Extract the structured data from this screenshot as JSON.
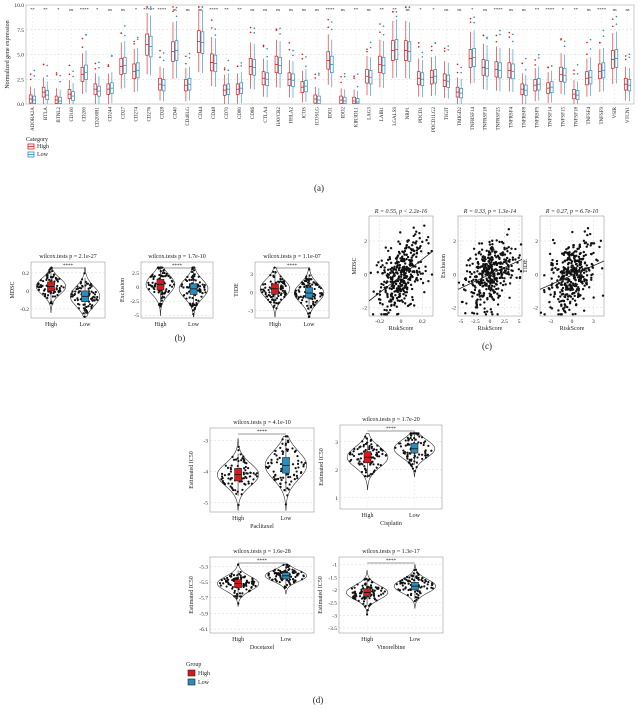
{
  "panels": {
    "a": "(a)",
    "b": "(b)",
    "c": "(c)",
    "d": "(d)"
  },
  "colors": {
    "high": "#d7191c",
    "low": "#2b8cbe",
    "high_fill": "#f6cfcf",
    "low_fill": "#cfe6f2"
  },
  "chart_data": [
    {
      "id": "a",
      "type": "box",
      "ylabel": "Normalized gene expression",
      "ylim": [
        0,
        10
      ],
      "yticks": [
        0.0,
        2.5,
        5.0,
        7.5,
        10.0
      ],
      "legend": {
        "title": "Category",
        "entries": [
          "High",
          "Low"
        ]
      },
      "categories": [
        "ADORA2A",
        "BTLA",
        "BTNL2",
        "CD160",
        "CD200",
        "CD200R1",
        "CD244",
        "CD27",
        "CD274",
        "CD276",
        "CD28",
        "CD40",
        "CD40LG",
        "CD44",
        "CD48",
        "CD70",
        "CD80",
        "CD86",
        "CTLA4",
        "HAVCR2",
        "HHLA2",
        "ICOS",
        "ICOSLG",
        "IDO1",
        "IDO2",
        "KIR3DL1",
        "LAG3",
        "LAIR1",
        "LGALS9",
        "NRP1",
        "PDCD1",
        "PDCD1LG2",
        "TIGIT",
        "TMIGD2",
        "TNFRSF14",
        "TNFRSF18",
        "TNFRSF25",
        "TNFRSF4",
        "TNFRSF8",
        "TNFRSF9",
        "TNFSF14",
        "TNFSF15",
        "TNFSF18",
        "TNFSF4",
        "TNFSF9",
        "VSIR",
        "VTCN1"
      ],
      "significance": [
        "**",
        "**",
        "*",
        "ns",
        "****",
        "*",
        "ns",
        "ns",
        "*",
        "*****",
        "****",
        "ns",
        "ns",
        "ns",
        "****",
        "**",
        "**",
        "ns",
        "ns",
        "ns",
        "ns",
        "ns",
        "ns",
        "****",
        "ns",
        "**",
        "ns",
        "**",
        "**",
        "ns",
        "*",
        "*",
        "ns",
        "ns",
        "*",
        "ns",
        "****",
        "ns",
        "ns",
        "**",
        "****",
        "*",
        "**",
        "ns",
        "****",
        "ns",
        "ns"
      ],
      "series": [
        {
          "name": "High",
          "median": [
            0.5,
            1.2,
            0.4,
            1.0,
            3.0,
            1.5,
            1.5,
            3.8,
            3.3,
            6.0,
            2.0,
            5.3,
            1.9,
            6.3,
            4.2,
            1.4,
            1.5,
            3.8,
            2.6,
            4.0,
            2.5,
            1.7,
            0.5,
            4.4,
            0.4,
            0.3,
            2.8,
            4.0,
            5.4,
            5.4,
            2.6,
            2.7,
            2.4,
            1.2,
            4.6,
            3.7,
            3.5,
            3.4,
            1.5,
            1.9,
            1.6,
            3.0,
            1.0,
            2.6,
            3.3,
            4.5,
            2.0
          ]
        },
        {
          "name": "Low",
          "median": [
            0.4,
            0.9,
            0.3,
            0.8,
            3.2,
            1.3,
            1.6,
            3.9,
            3.4,
            5.8,
            1.9,
            5.4,
            2.0,
            6.2,
            4.1,
            1.5,
            1.6,
            3.7,
            2.5,
            3.9,
            2.4,
            1.8,
            0.4,
            4.0,
            0.3,
            0.2,
            2.7,
            3.9,
            5.5,
            5.3,
            2.5,
            2.8,
            2.3,
            1.1,
            4.7,
            3.6,
            3.4,
            3.3,
            1.4,
            2.0,
            1.7,
            2.9,
            0.9,
            2.7,
            3.4,
            4.6,
            1.9
          ]
        }
      ]
    },
    {
      "id": "b1",
      "type": "violin",
      "title": "wilcox.tests p = 2.1e-27",
      "ylabel": "MDSC",
      "categories": [
        "High",
        "Low"
      ],
      "yticks": [
        -0.2,
        0.0,
        0.2
      ],
      "ylim": [
        -0.3,
        0.32
      ],
      "median": [
        0.05,
        -0.06
      ],
      "q1": [
        0.0,
        -0.12
      ],
      "q3": [
        0.1,
        0.0
      ],
      "sig": "****"
    },
    {
      "id": "b2",
      "type": "violin",
      "title": "wilcox.tests p = 1.7e-10",
      "ylabel": "Exclusion",
      "categories": [
        "High",
        "Low"
      ],
      "yticks": [
        -5.0,
        -2.5,
        0.0,
        2.5
      ],
      "ylim": [
        -5.5,
        4.5
      ],
      "median": [
        0.5,
        -0.3
      ],
      "q1": [
        -0.5,
        -1.3
      ],
      "q3": [
        1.4,
        0.6
      ],
      "sig": "****"
    },
    {
      "id": "b3",
      "type": "violin",
      "title": "wilcox.tests p = 1.1e-07",
      "ylabel": "TIDE",
      "categories": [
        "High",
        "Low"
      ],
      "yticks": [
        -3,
        0,
        3
      ],
      "ylim": [
        -4.2,
        5
      ],
      "median": [
        0.6,
        -0.1
      ],
      "q1": [
        -0.3,
        -0.9
      ],
      "q3": [
        1.4,
        0.8
      ],
      "sig": "****"
    },
    {
      "id": "c1",
      "type": "scatter",
      "title": "R = 0.55, p < 2.2e-16",
      "xlabel": "RiskScore",
      "ylabel": "MDSC",
      "xlim": [
        -0.3,
        0.3
      ],
      "xticks": [
        -0.2,
        0.0,
        0.2
      ],
      "ylim": [
        -2.5,
        3.5
      ],
      "yticks": [
        -2,
        0,
        2
      ],
      "fit": {
        "x": [
          -0.3,
          0.3
        ],
        "y": [
          -1.6,
          1.4
        ]
      }
    },
    {
      "id": "c2",
      "type": "scatter",
      "title": "R = 0.33, p = 1.3e-14",
      "xlabel": "RiskScore",
      "ylabel": "Exclusion",
      "xlim": [
        -5.5,
        5.5
      ],
      "xticks": [
        -5.0,
        -2.5,
        0.0,
        2.5,
        5.0
      ],
      "ylim": [
        -2.5,
        3.5
      ],
      "yticks": [
        -2,
        0,
        2
      ],
      "fit": {
        "x": [
          -5.5,
          5.5
        ],
        "y": [
          -0.9,
          0.9
        ]
      }
    },
    {
      "id": "c3",
      "type": "scatter",
      "title": "R = 0.27, p = 6.7e-10",
      "xlabel": "RiskScore",
      "ylabel": "TIDE",
      "xlim": [
        -4.5,
        4.5
      ],
      "xticks": [
        -3,
        0,
        3
      ],
      "ylim": [
        -2.5,
        3.5
      ],
      "yticks": [
        -2,
        0,
        2
      ],
      "fit": {
        "x": [
          -4.5,
          4.5
        ],
        "y": [
          -0.9,
          0.8
        ]
      }
    },
    {
      "id": "d1",
      "type": "violin",
      "title": "wilcox.tests p = 4.1e-10",
      "xlabel": "Paclitaxel",
      "ylabel": "Estimated IC50",
      "categories": [
        "High",
        "Low"
      ],
      "yticks": [
        -5,
        -4,
        -3
      ],
      "ylim": [
        -5.3,
        -2.6
      ],
      "median": [
        -4.1,
        -3.8
      ],
      "q1": [
        -4.3,
        -4.05
      ],
      "q3": [
        -3.9,
        -3.55
      ],
      "sig": "****"
    },
    {
      "id": "d2",
      "type": "violin",
      "title": "wilcox.tests p = 1.7e-20",
      "xlabel": "Cisplatin",
      "ylabel": "Estimated IC50",
      "categories": [
        "High",
        "Low"
      ],
      "yticks": [
        1,
        2,
        3
      ],
      "ylim": [
        0.6,
        3.6
      ],
      "median": [
        2.45,
        2.75
      ],
      "q1": [
        2.25,
        2.6
      ],
      "q3": [
        2.65,
        2.95
      ],
      "sig": "****"
    },
    {
      "id": "d3",
      "type": "violin",
      "title": "wilcox.tests p = 1.6e-28",
      "xlabel": "Docetaxel",
      "ylabel": "Estimated IC50",
      "categories": [
        "High",
        "Low"
      ],
      "yticks": [
        -6.1,
        -5.9,
        -5.7,
        -5.5,
        -5.3
      ],
      "ylim": [
        -6.15,
        -5.18
      ],
      "median": [
        -5.52,
        -5.42
      ],
      "q1": [
        -5.57,
        -5.46
      ],
      "q3": [
        -5.47,
        -5.38
      ],
      "sig": "****"
    },
    {
      "id": "d4",
      "type": "violin",
      "title": "wilcox.tests p = 1.3e-17",
      "xlabel": "Vinorelbine",
      "ylabel": "Estimated IC50",
      "categories": [
        "High",
        "Low"
      ],
      "yticks": [
        -3.5,
        -3.0,
        -2.5,
        -2.0,
        -1.5,
        -1.0
      ],
      "ylim": [
        -3.7,
        -0.7
      ],
      "median": [
        -2.1,
        -1.85
      ],
      "q1": [
        -2.25,
        -2.0
      ],
      "q3": [
        -1.95,
        -1.7
      ],
      "sig": "****"
    }
  ],
  "legend_d": {
    "title": "Group",
    "entries": [
      "High",
      "Low"
    ]
  }
}
